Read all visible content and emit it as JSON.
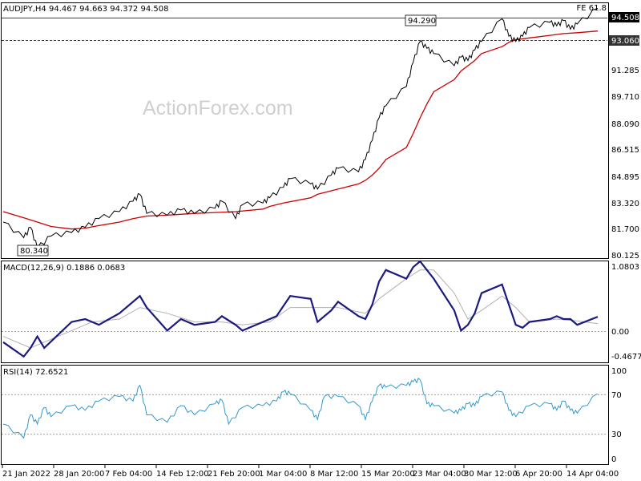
{
  "chart_data": [
    {
      "type": "line",
      "subtype": "candlestick",
      "title": "AUDJPY,H4  94.467 94.663 94.372 94.508",
      "corner_label": "FE 61.8",
      "watermark": "ActionForex.com",
      "y_ticks": [
        "94.508",
        "93.060",
        "91.285",
        "89.710",
        "88.090",
        "86.515",
        "84.895",
        "83.320",
        "81.700",
        "80.125"
      ],
      "ylim": [
        80.125,
        94.8
      ],
      "annotations": [
        {
          "text": "94.290",
          "price": 94.29,
          "date": "23 Mar"
        },
        {
          "text": "80.340",
          "price": 80.34,
          "date": "24 Jan"
        }
      ],
      "fe_level": {
        "price": 94.508,
        "label": "94.508"
      },
      "support_level": {
        "price": 93.06,
        "label": "93.060"
      },
      "series": [
        {
          "name": "",
          "color": "#000000",
          "points": [
            [
              "21 Jan",
              82.2
            ],
            [
              "24 Jan",
              81.3
            ],
            [
              "25 Jan",
              81.9
            ],
            [
              "26 Jan",
              80.7
            ],
            [
              "28 Jan",
              81.4
            ],
            [
              "31 Jan",
              81.6
            ],
            [
              "2 Feb",
              81.9
            ],
            [
              "4 Feb",
              82.4
            ],
            [
              "7 Feb",
              82.8
            ],
            [
              "9 Feb",
              83.4
            ],
            [
              "10 Feb",
              83.8
            ],
            [
              "11 Feb",
              82.7
            ],
            [
              "14 Feb",
              82.6
            ],
            [
              "16 Feb",
              82.9
            ],
            [
              "18 Feb",
              82.7
            ],
            [
              "21 Feb",
              83.0
            ],
            [
              "22 Feb",
              83.4
            ],
            [
              "24 Feb",
              82.4
            ],
            [
              "25 Feb",
              83.2
            ],
            [
              "28 Feb",
              83.3
            ],
            [
              "1 Mar",
              83.6
            ],
            [
              "3 Mar",
              84.2
            ],
            [
              "4 Mar",
              84.7
            ],
            [
              "7 Mar",
              84.4
            ],
            [
              "8 Mar",
              84.1
            ],
            [
              "10 Mar",
              84.9
            ],
            [
              "11 Mar",
              85.3
            ],
            [
              "14 Mar",
              85.1
            ],
            [
              "15 Mar",
              85.8
            ],
            [
              "16 Mar",
              86.9
            ],
            [
              "17 Mar",
              88.2
            ],
            [
              "18 Mar",
              88.9
            ],
            [
              "21 Mar",
              90.0
            ],
            [
              "22 Mar",
              91.4
            ],
            [
              "23 Mar",
              92.6
            ],
            [
              "24 Mar",
              92.2
            ],
            [
              "25 Mar",
              91.9
            ],
            [
              "28 Mar",
              91.2
            ],
            [
              "29 Mar",
              91.7
            ],
            [
              "30 Mar",
              91.5
            ],
            [
              "31 Mar",
              92.1
            ],
            [
              "1 Apr",
              92.6
            ],
            [
              "4 Apr",
              93.9
            ],
            [
              "5 Apr",
              92.9
            ],
            [
              "6 Apr",
              92.6
            ],
            [
              "7 Apr",
              92.9
            ],
            [
              "8 Apr",
              93.4
            ],
            [
              "11 Apr",
              93.7
            ],
            [
              "12 Apr",
              93.5
            ],
            [
              "13 Apr",
              93.8
            ],
            [
              "14 Apr",
              93.3
            ],
            [
              "15 Apr",
              93.6
            ],
            [
              "18 Apr",
              94.5
            ]
          ]
        },
        {
          "name": "",
          "color": "#cc0000",
          "points": [
            [
              "21 Jan",
              82.8
            ],
            [
              "24 Jan",
              82.45
            ],
            [
              "26 Jan",
              82.2
            ],
            [
              "28 Jan",
              81.95
            ],
            [
              "31 Jan",
              81.8
            ],
            [
              "2 Feb",
              81.85
            ],
            [
              "4 Feb",
              82.0
            ],
            [
              "7 Feb",
              82.2
            ],
            [
              "9 Feb",
              82.4
            ],
            [
              "11 Feb",
              82.55
            ],
            [
              "14 Feb",
              82.6
            ],
            [
              "16 Feb",
              82.65
            ],
            [
              "18 Feb",
              82.7
            ],
            [
              "21 Feb",
              82.75
            ],
            [
              "24 Feb",
              82.8
            ],
            [
              "28 Feb",
              82.95
            ],
            [
              "1 Mar",
              83.1
            ],
            [
              "3 Mar",
              83.3
            ],
            [
              "7 Mar",
              83.6
            ],
            [
              "8 Mar",
              83.8
            ],
            [
              "10 Mar",
              84.0
            ],
            [
              "14 Mar",
              84.4
            ],
            [
              "15 Mar",
              84.6
            ],
            [
              "16 Mar",
              84.9
            ],
            [
              "17 Mar",
              85.3
            ],
            [
              "18 Mar",
              85.8
            ],
            [
              "21 Mar",
              86.5
            ],
            [
              "22 Mar",
              87.3
            ],
            [
              "23 Mar",
              88.2
            ],
            [
              "24 Mar",
              89.0
            ],
            [
              "25 Mar",
              89.7
            ],
            [
              "28 Mar",
              90.4
            ],
            [
              "29 Mar",
              90.9
            ],
            [
              "30 Mar",
              91.2
            ],
            [
              "31 Mar",
              91.5
            ],
            [
              "1 Apr",
              91.9
            ],
            [
              "4 Apr",
              92.3
            ],
            [
              "5 Apr",
              92.55
            ],
            [
              "6 Apr",
              92.7
            ],
            [
              "8 Apr",
              92.8
            ],
            [
              "11 Apr",
              92.95
            ],
            [
              "13 Apr",
              93.05
            ],
            [
              "15 Apr",
              93.1
            ],
            [
              "18 Apr",
              93.2
            ]
          ]
        }
      ]
    },
    {
      "type": "line",
      "title": "MACD(12,26,9) 0.1886 0.0683",
      "y_ticks": [
        "1.0803",
        "0.00",
        "-0.4677"
      ],
      "ylim": [
        -0.6,
        1.15
      ],
      "series": [
        {
          "name": "",
          "color": "#1a1a80",
          "points": [
            [
              "21 Jan",
              -0.25
            ],
            [
              "24 Jan",
              -0.5
            ],
            [
              "25 Jan",
              -0.35
            ],
            [
              "26 Jan",
              -0.15
            ],
            [
              "27 Jan",
              -0.35
            ],
            [
              "31 Jan",
              0.1
            ],
            [
              "2 Feb",
              0.15
            ],
            [
              "4 Feb",
              0.05
            ],
            [
              "7 Feb",
              0.25
            ],
            [
              "10 Feb",
              0.55
            ],
            [
              "11 Feb",
              0.35
            ],
            [
              "14 Feb",
              -0.05
            ],
            [
              "16 Feb",
              0.15
            ],
            [
              "18 Feb",
              0.05
            ],
            [
              "21 Feb",
              0.1
            ],
            [
              "22 Feb",
              0.2
            ],
            [
              "24 Feb",
              0.05
            ],
            [
              "25 Feb",
              -0.05
            ],
            [
              "28 Feb",
              0.1
            ],
            [
              "2 Mar",
              0.2
            ],
            [
              "4 Mar",
              0.55
            ],
            [
              "7 Mar",
              0.5
            ],
            [
              "8 Mar",
              0.1
            ],
            [
              "10 Mar",
              0.3
            ],
            [
              "11 Mar",
              0.45
            ],
            [
              "14 Mar",
              0.2
            ],
            [
              "15 Mar",
              0.15
            ],
            [
              "16 Mar",
              0.4
            ],
            [
              "17 Mar",
              0.8
            ],
            [
              "18 Mar",
              1.0
            ],
            [
              "21 Mar",
              0.85
            ],
            [
              "22 Mar",
              1.05
            ],
            [
              "23 Mar",
              1.15
            ],
            [
              "24 Mar",
              1.0
            ],
            [
              "25 Mar",
              0.85
            ],
            [
              "28 Mar",
              0.3
            ],
            [
              "29 Mar",
              -0.05
            ],
            [
              "30 Mar",
              0.05
            ],
            [
              "31 Mar",
              0.25
            ],
            [
              "1 Apr",
              0.6
            ],
            [
              "4 Apr",
              0.75
            ],
            [
              "5 Apr",
              0.4
            ],
            [
              "6 Apr",
              0.05
            ],
            [
              "7 Apr",
              0.0
            ],
            [
              "8 Apr",
              0.1
            ],
            [
              "11 Apr",
              0.15
            ],
            [
              "12 Apr",
              0.2
            ],
            [
              "13 Apr",
              0.15
            ],
            [
              "14 Apr",
              0.15
            ],
            [
              "15 Apr",
              0.05
            ],
            [
              "18 Apr",
              0.19
            ]
          ]
        },
        {
          "name": "",
          "color": "#b0b0b0",
          "points": [
            [
              "21 Jan",
              -0.15
            ],
            [
              "25 Jan",
              -0.35
            ],
            [
              "28 Jan",
              -0.2
            ],
            [
              "31 Jan",
              -0.05
            ],
            [
              "3 Feb",
              0.1
            ],
            [
              "7 Feb",
              0.15
            ],
            [
              "10 Feb",
              0.35
            ],
            [
              "14 Feb",
              0.25
            ],
            [
              "18 Feb",
              0.1
            ],
            [
              "22 Feb",
              0.1
            ],
            [
              "25 Feb",
              0.05
            ],
            [
              "1 Mar",
              0.1
            ],
            [
              "4 Mar",
              0.35
            ],
            [
              "8 Mar",
              0.35
            ],
            [
              "11 Mar",
              0.35
            ],
            [
              "15 Mar",
              0.25
            ],
            [
              "17 Mar",
              0.5
            ],
            [
              "21 Mar",
              0.85
            ],
            [
              "23 Mar",
              1.0
            ],
            [
              "25 Mar",
              1.0
            ],
            [
              "28 Mar",
              0.6
            ],
            [
              "30 Mar",
              0.15
            ],
            [
              "1 Apr",
              0.3
            ],
            [
              "4 Apr",
              0.55
            ],
            [
              "6 Apr",
              0.35
            ],
            [
              "8 Apr",
              0.1
            ],
            [
              "12 Apr",
              0.15
            ],
            [
              "15 Apr",
              0.12
            ],
            [
              "18 Apr",
              0.07
            ]
          ]
        }
      ]
    },
    {
      "type": "line",
      "title": "RSI(14) 72.6521",
      "y_ticks": [
        "100",
        "70",
        "30",
        "0"
      ],
      "ylim": [
        0,
        100
      ],
      "x_ticks": [
        "21 Jan 2022",
        "28 Jan 20:00",
        "7 Feb 04:00",
        "14 Feb 12:00",
        "21 Feb 20:00",
        "1 Mar 04:00",
        "8 Mar 12:00",
        "15 Mar 20:00",
        "23 Mar 04:00",
        "30 Mar 12:00",
        "6 Apr 20:00",
        "14 Apr 04:00"
      ],
      "series": [
        {
          "name": "",
          "color": "#3399cc",
          "points": [
            [
              "21 Jan",
              40
            ],
            [
              "24 Jan",
              25
            ],
            [
              "25 Jan",
              50
            ],
            [
              "26 Jan",
              40
            ],
            [
              "27 Jan",
              58
            ],
            [
              "28 Jan",
              48
            ],
            [
              "31 Jan",
              60
            ],
            [
              "2 Feb",
              55
            ],
            [
              "4 Feb",
              65
            ],
            [
              "7 Feb",
              70
            ],
            [
              "9 Feb",
              65
            ],
            [
              "10 Feb",
              82
            ],
            [
              "11 Feb",
              50
            ],
            [
              "14 Feb",
              42
            ],
            [
              "16 Feb",
              60
            ],
            [
              "18 Feb",
              50
            ],
            [
              "21 Feb",
              62
            ],
            [
              "22 Feb",
              66
            ],
            [
              "23 Feb",
              40
            ],
            [
              "25 Feb",
              58
            ],
            [
              "28 Feb",
              60
            ],
            [
              "2 Mar",
              65
            ],
            [
              "3 Mar",
              75
            ],
            [
              "4 Mar",
              73
            ],
            [
              "7 Mar",
              55
            ],
            [
              "8 Mar",
              45
            ],
            [
              "9 Mar",
              70
            ],
            [
              "11 Mar",
              70
            ],
            [
              "14 Mar",
              60
            ],
            [
              "15 Mar",
              45
            ],
            [
              "16 Mar",
              65
            ],
            [
              "17 Mar",
              82
            ],
            [
              "18 Mar",
              80
            ],
            [
              "21 Mar",
              82
            ],
            [
              "22 Mar",
              86
            ],
            [
              "23 Mar",
              88
            ],
            [
              "24 Mar",
              62
            ],
            [
              "25 Mar",
              60
            ],
            [
              "28 Mar",
              52
            ],
            [
              "29 Mar",
              55
            ],
            [
              "30 Mar",
              62
            ],
            [
              "31 Mar",
              60
            ],
            [
              "1 Apr",
              70
            ],
            [
              "4 Apr",
              75
            ],
            [
              "5 Apr",
              55
            ],
            [
              "6 Apr",
              48
            ],
            [
              "8 Apr",
              60
            ],
            [
              "11 Apr",
              62
            ],
            [
              "12 Apr",
              55
            ],
            [
              "13 Apr",
              65
            ],
            [
              "14 Apr",
              55
            ],
            [
              "15 Apr",
              52
            ],
            [
              "18 Apr",
              73
            ]
          ]
        }
      ]
    }
  ]
}
